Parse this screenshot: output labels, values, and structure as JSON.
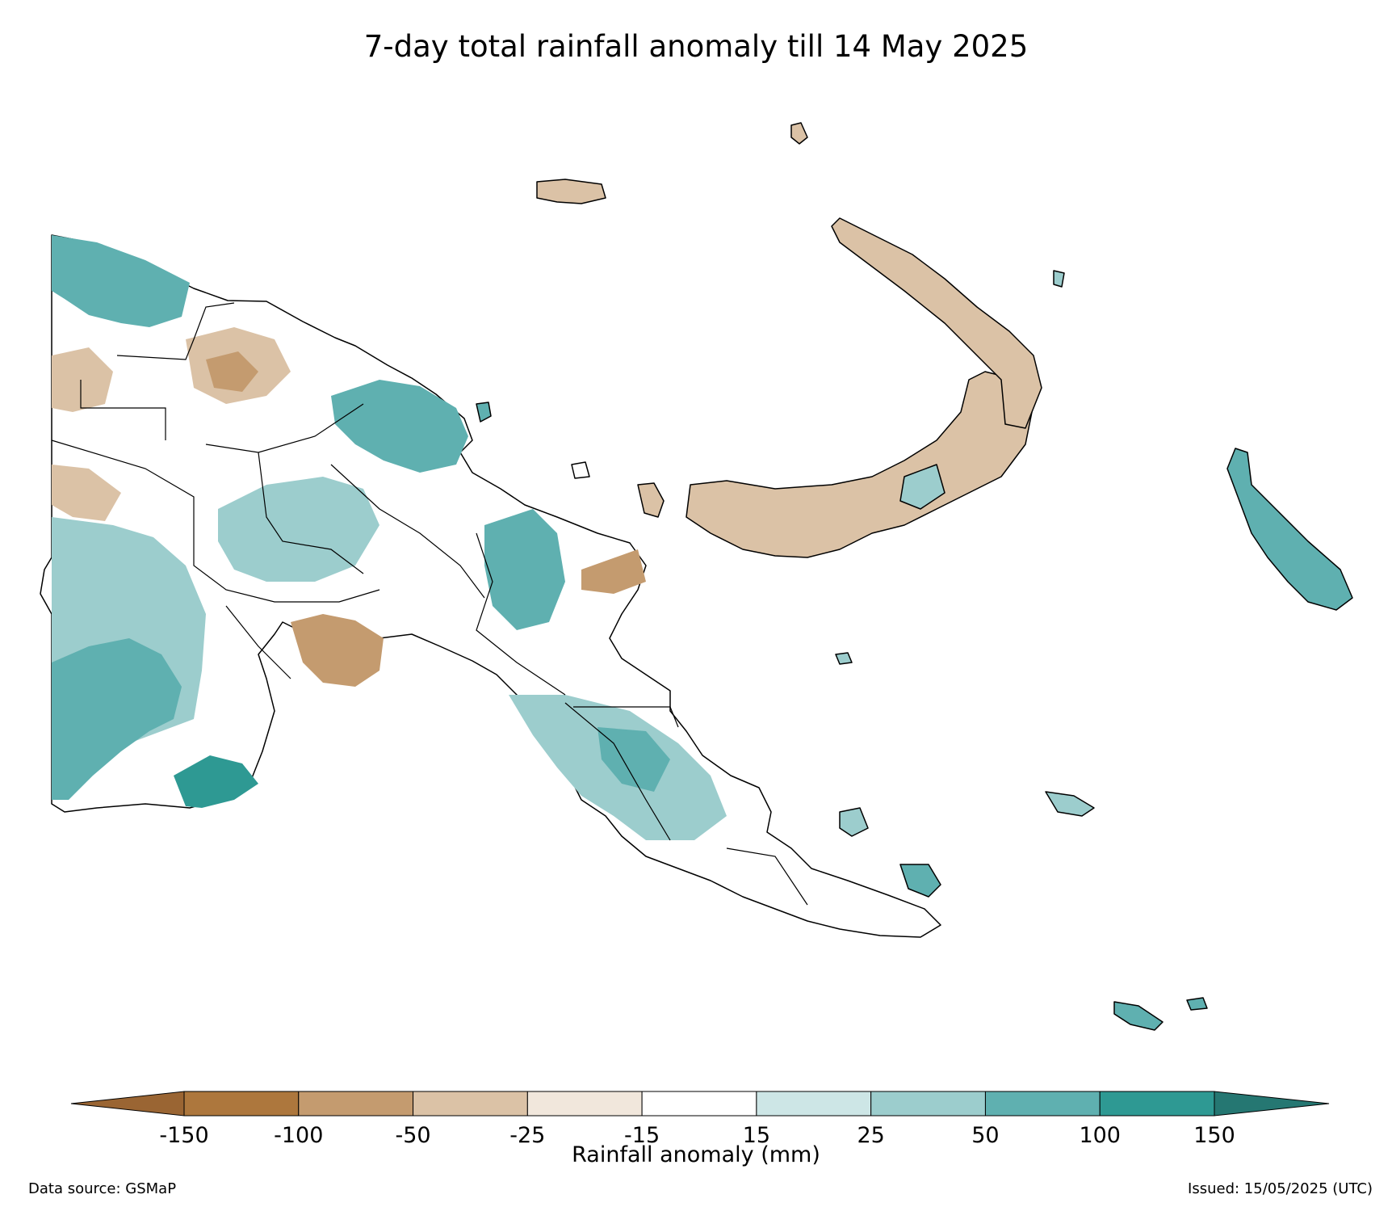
{
  "title": "7-day total rainfall anomaly till 14 May 2025",
  "colorbar": {
    "label": "Rainfall anomaly (mm)",
    "ticks": [
      "-150",
      "-100",
      "-50",
      "-25",
      "-15",
      "15",
      "25",
      "50",
      "100",
      "150"
    ],
    "bins": [
      {
        "range": "< -150",
        "color": "#9a6533"
      },
      {
        "range": "-150 to -100",
        "color": "#ad773d"
      },
      {
        "range": "-100 to -50",
        "color": "#c49b6f"
      },
      {
        "range": "-50 to -25",
        "color": "#dbc2a6"
      },
      {
        "range": "-25 to -15",
        "color": "#f1e7dc"
      },
      {
        "range": "-15 to 15",
        "color": "#ffffff"
      },
      {
        "range": "15 to 25",
        "color": "#cde6e6"
      },
      {
        "range": "25 to 50",
        "color": "#9ccdcd"
      },
      {
        "range": "50 to 100",
        "color": "#5fb0b0"
      },
      {
        "range": "100 to 150",
        "color": "#2e9993"
      },
      {
        "range": "> 150",
        "color": "#257772"
      }
    ]
  },
  "footer": {
    "source": "Data source: GSMaP",
    "issued": "Issued: 15/05/2025 (UTC)"
  }
}
